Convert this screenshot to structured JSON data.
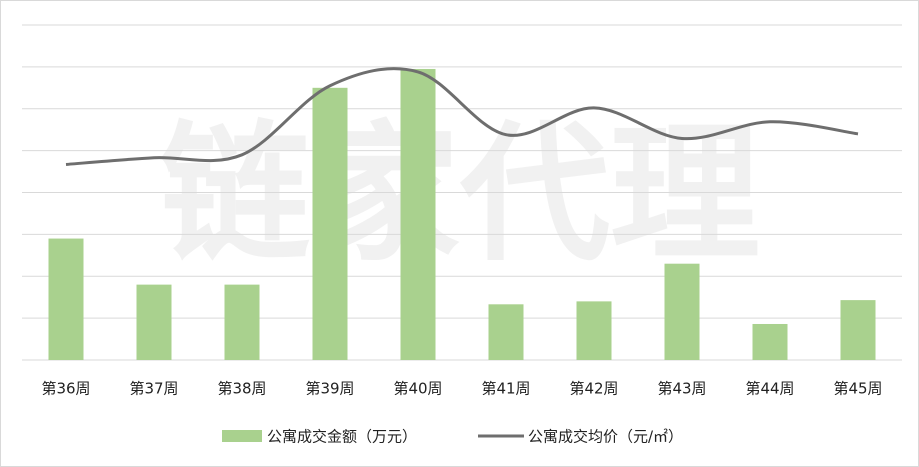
{
  "chart_data": {
    "type": "bar_line",
    "watermark": "链家代理",
    "categories": [
      "第36周",
      "第37周",
      "第38周",
      "第39周",
      "第40周",
      "第41周",
      "第42周",
      "第43周",
      "第44周",
      "第45周"
    ],
    "series": [
      {
        "name": "公寓成交金额（万元）",
        "type": "bar",
        "color": "#a9d18e",
        "values": [
          2.9,
          1.8,
          1.8,
          6.5,
          6.95,
          1.33,
          1.4,
          2.3,
          0.86,
          1.43
        ]
      },
      {
        "name": "公寓成交均价（元/㎡）",
        "type": "line",
        "color": "#6e6e6e",
        "values": [
          4.67,
          4.83,
          4.9,
          6.55,
          6.88,
          5.38,
          6.02,
          5.29,
          5.69,
          5.4
        ]
      }
    ],
    "ylim": [
      0,
      8
    ],
    "yticks": [
      0,
      1,
      2,
      3,
      4,
      5,
      6,
      7,
      8
    ],
    "grid": true
  }
}
